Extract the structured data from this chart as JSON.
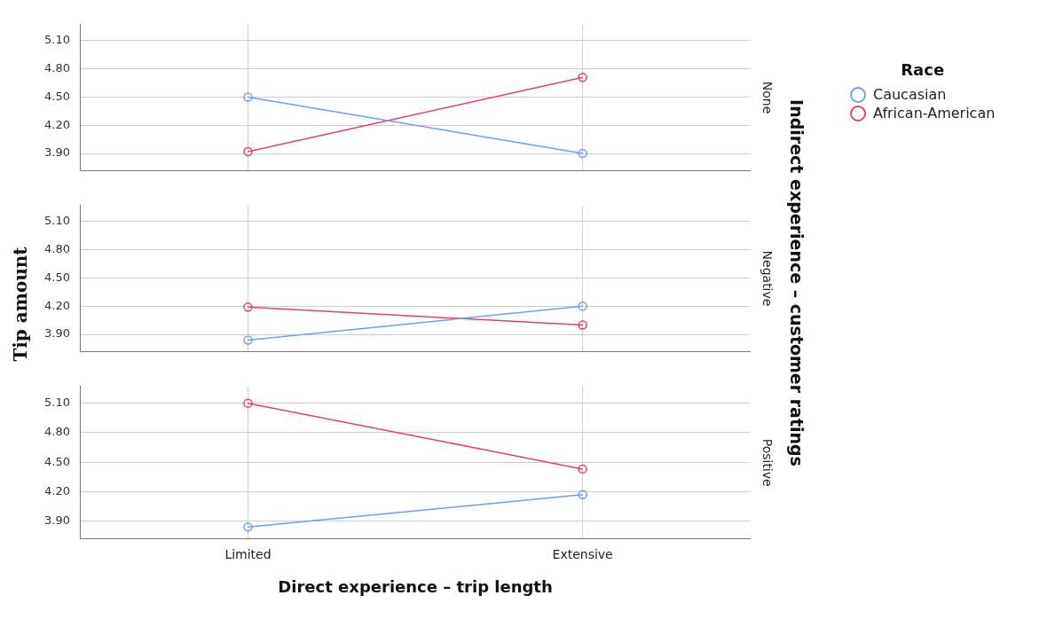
{
  "chart_data": [
    {
      "type": "line",
      "y2label": "None",
      "categories": [
        null,
        null
      ],
      "series": [
        {
          "name": "Caucasian",
          "color": "#6fa0e8",
          "values": [
            4.5,
            3.9
          ]
        },
        {
          "name": "African-American",
          "color": "#e0436a",
          "values": [
            3.92,
            4.71
          ]
        }
      ],
      "ylim": [
        3.72,
        5.27
      ],
      "yticks": [
        {
          "value": 3.9,
          "label": "3.90"
        },
        {
          "value": 4.2,
          "label": "4.20"
        },
        {
          "value": 4.5,
          "label": "4.50"
        },
        {
          "value": 4.8,
          "label": "4.80"
        },
        {
          "value": 5.1,
          "label": "5.10"
        }
      ],
      "grid": true,
      "marker": "circle",
      "tick_labels": "y",
      "legend": "right",
      "legend_title": "Race"
    },
    {
      "type": "line",
      "y2label": "Negative",
      "categories": [
        null,
        null
      ],
      "series": [
        {
          "name": "Caucasian",
          "color": "#6fa0e8",
          "values": [
            3.84,
            4.2
          ]
        },
        {
          "name": "African-American",
          "color": "#e0436a",
          "values": [
            4.19,
            4.0
          ]
        }
      ],
      "ylim": [
        3.72,
        5.27
      ],
      "yticks": [
        {
          "value": 3.9,
          "label": "3.90"
        },
        {
          "value": 4.2,
          "label": "4.20"
        },
        {
          "value": 4.5,
          "label": "4.50"
        },
        {
          "value": 4.8,
          "label": "4.80"
        },
        {
          "value": 5.1,
          "label": "5.10"
        }
      ],
      "grid": true,
      "marker": "circle",
      "tick_labels": "y",
      "ylabel": "Tip amount",
      "annotations": [
        "Indirect experience – customer ratings"
      ]
    },
    {
      "type": "line",
      "y2label": "Positive",
      "categories": [
        "Limited",
        "Extensive"
      ],
      "series": [
        {
          "name": "Caucasian",
          "color": "#6fa0e8",
          "values": [
            3.84,
            4.17
          ]
        },
        {
          "name": "African-American",
          "color": "#e0436a",
          "values": [
            5.1,
            4.43
          ]
        }
      ],
      "ylim": [
        3.72,
        5.27
      ],
      "yticks": [
        {
          "value": 3.9,
          "label": "3.90"
        },
        {
          "value": 4.2,
          "label": "4.20"
        },
        {
          "value": 4.5,
          "label": "4.50"
        },
        {
          "value": 4.8,
          "label": "4.80"
        },
        {
          "value": 5.1,
          "label": "5.10"
        }
      ],
      "grid": true,
      "marker": "circle",
      "xlabel": "Direct experience – trip length"
    }
  ]
}
